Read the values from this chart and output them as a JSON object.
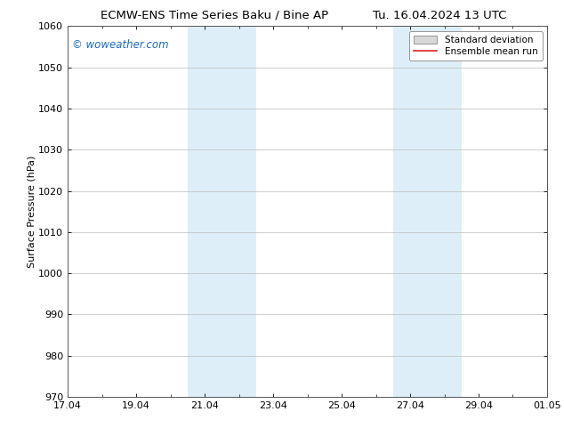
{
  "title_left": "ECMW-ENS Time Series Baku / Bine AP",
  "title_right": "Tu. 16.04.2024 13 UTC",
  "ylabel": "Surface Pressure (hPa)",
  "ylim": [
    970,
    1060
  ],
  "yticks": [
    970,
    980,
    990,
    1000,
    1010,
    1020,
    1030,
    1040,
    1050,
    1060
  ],
  "xtick_labels": [
    "17.04",
    "19.04",
    "21.04",
    "23.04",
    "25.04",
    "27.04",
    "29.04",
    "01.05"
  ],
  "xmin": 0,
  "xmax": 14,
  "shaded_regions": [
    {
      "x_start": 3.5,
      "x_end": 5.5,
      "color": "#ddeef8"
    },
    {
      "x_start": 9.5,
      "x_end": 11.5,
      "color": "#ddeef8"
    }
  ],
  "background_color": "#ffffff",
  "plot_bg_color": "#ffffff",
  "grid_color": "#bbbbbb",
  "watermark_text": "© woweather.com",
  "watermark_color": "#1a6bbf",
  "legend_std_dev_color": "#d8d8d8",
  "legend_std_dev_edge": "#888888",
  "legend_mean_run_color": "#dd2222",
  "title_fontsize": 9.5,
  "ylabel_fontsize": 8,
  "tick_fontsize": 8,
  "watermark_fontsize": 8.5,
  "legend_fontsize": 7.5
}
